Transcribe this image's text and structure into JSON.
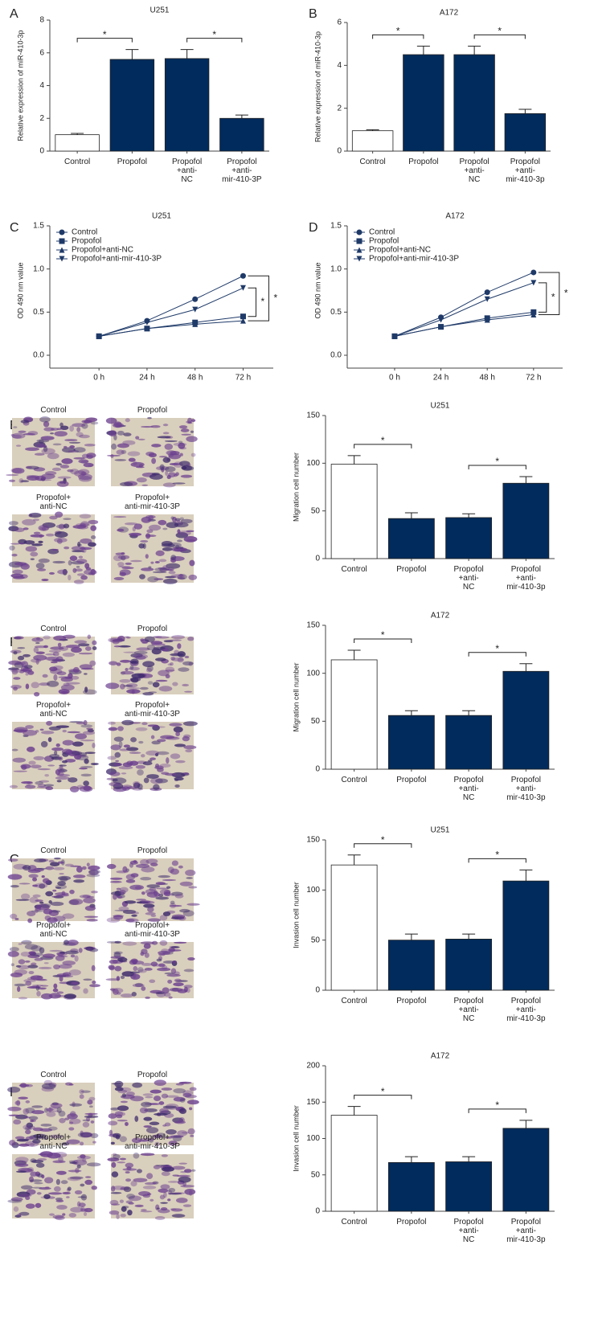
{
  "chart_data": [
    {
      "type": "bar",
      "panel": "A",
      "title": "U251",
      "ylabel": "Relative expression of miR-410-3p",
      "categories": [
        "Control",
        "Propofol",
        "Propofol\n+anti-\nNC",
        "Propofol\n+anti-\nmir-410-3P"
      ],
      "values": [
        1.0,
        5.6,
        5.65,
        2.0
      ],
      "errors": [
        0.08,
        0.6,
        0.55,
        0.2
      ],
      "ylim": [
        0,
        8
      ],
      "yticks": [
        0,
        2,
        4,
        6,
        8
      ],
      "colors": [
        "#ffffff",
        "#002b5c",
        "#002b5c",
        "#002b5c"
      ],
      "annotations": [
        "*",
        "*"
      ]
    },
    {
      "type": "bar",
      "panel": "B",
      "title": "A172",
      "ylabel": "Relative expression of miR-410-3p",
      "categories": [
        "Control",
        "Propofol",
        "Propofol\n+anti-\nNC",
        "Propofol\n+anti-\nmir-410-3p"
      ],
      "values": [
        0.95,
        4.5,
        4.5,
        1.75
      ],
      "errors": [
        0.05,
        0.4,
        0.4,
        0.2
      ],
      "ylim": [
        0,
        6
      ],
      "yticks": [
        0,
        2,
        4,
        6
      ],
      "colors": [
        "#ffffff",
        "#002b5c",
        "#002b5c",
        "#002b5c"
      ],
      "annotations": [
        "*",
        "*"
      ]
    },
    {
      "type": "line",
      "panel": "C",
      "title": "U251",
      "ylabel": "OD 490 nm value",
      "categories": [
        "0 h",
        "24 h",
        "48 h",
        "72 h"
      ],
      "series": [
        {
          "name": "Control",
          "color": "#1f3a68",
          "marker": "circle",
          "values": [
            0.22,
            0.4,
            0.65,
            0.92
          ]
        },
        {
          "name": "Propofol",
          "color": "#1f3a68",
          "marker": "square",
          "values": [
            0.22,
            0.31,
            0.38,
            0.45
          ]
        },
        {
          "name": "Propofol+anti-NC",
          "color": "#1f3a68",
          "marker": "triangle-up",
          "values": [
            0.22,
            0.31,
            0.36,
            0.4
          ]
        },
        {
          "name": "Propofol+anti-mir-410-3P",
          "color": "#1f3a68",
          "marker": "triangle-down",
          "values": [
            0.22,
            0.38,
            0.53,
            0.78
          ]
        }
      ],
      "ylim": [
        0,
        1.5
      ],
      "yticks": [
        {
          "value": 0,
          "label": "0.0"
        },
        0.5,
        {
          "value": 1,
          "label": "1.0"
        },
        1.5
      ],
      "annotations": [
        "*",
        "*"
      ]
    },
    {
      "type": "line",
      "panel": "D",
      "title": "A172",
      "ylabel": "OD 490 nm value",
      "categories": [
        "0 h",
        "24 h",
        "48 h",
        "72 h"
      ],
      "series": [
        {
          "name": "Control",
          "color": "#1f3a68",
          "marker": "circle",
          "values": [
            0.22,
            0.44,
            0.73,
            0.96
          ]
        },
        {
          "name": "Propofol",
          "color": "#1f3a68",
          "marker": "square",
          "values": [
            0.22,
            0.33,
            0.43,
            0.5
          ]
        },
        {
          "name": "Propofol+anti-NC",
          "color": "#1f3a68",
          "marker": "triangle-up",
          "values": [
            0.22,
            0.33,
            0.41,
            0.47
          ]
        },
        {
          "name": "Propofol+anti-mir-410-3P",
          "color": "#1f3a68",
          "marker": "triangle-down",
          "values": [
            0.22,
            0.41,
            0.65,
            0.84
          ]
        }
      ],
      "ylim": [
        0,
        1.5
      ],
      "yticks": [
        {
          "value": 0,
          "label": "0.0"
        },
        0.5,
        {
          "value": 1,
          "label": "1.0"
        },
        1.5
      ],
      "annotations": [
        "*",
        "*"
      ]
    },
    {
      "type": "bar",
      "panel": "E",
      "title": "U251",
      "ylabel": "Migration cell number",
      "image_labels": [
        "Control",
        "Propofol",
        "Propofol+\nanti-NC",
        "Propofol+\nanti-mir-410-3P"
      ],
      "categories": [
        "Control",
        "Propofol",
        "Propofol\n+anti-\nNC",
        "Propofol\n+anti-\nmir-410-3p"
      ],
      "values": [
        99,
        42,
        43,
        79
      ],
      "errors": [
        9,
        6,
        4,
        7
      ],
      "ylim": [
        0,
        150
      ],
      "yticks": [
        0,
        50,
        100,
        150
      ],
      "colors": [
        "#ffffff",
        "#002b5c",
        "#002b5c",
        "#002b5c"
      ],
      "annotations": [
        "*",
        "*"
      ]
    },
    {
      "type": "bar",
      "panel": "F",
      "title": "A172",
      "ylabel": "Migration cell number",
      "image_labels": [
        "Control",
        "Propofol",
        "Propofol+\nanti-NC",
        "Propofol+\nanti-mir-410-3P"
      ],
      "categories": [
        "Control",
        "Propofol",
        "Propofol\n+anti-\nNC",
        "Propofol\n+anti-\nmir-410-3p"
      ],
      "values": [
        114,
        56,
        56,
        102
      ],
      "errors": [
        10,
        5,
        5,
        8
      ],
      "ylim": [
        0,
        150
      ],
      "yticks": [
        0,
        50,
        100,
        150
      ],
      "colors": [
        "#ffffff",
        "#002b5c",
        "#002b5c",
        "#002b5c"
      ],
      "annotations": [
        "*",
        "*"
      ]
    },
    {
      "type": "bar",
      "panel": "G",
      "title": "U251",
      "ylabel": "Invasion cell number",
      "image_labels": [
        "Control",
        "Propofol",
        "Propofol+\nanti-NC",
        "Propofol+\nanti-mir-410-3P"
      ],
      "categories": [
        "Control",
        "Propofol",
        "Propofol\n+anti-\nNC",
        "Propofol\n+anti-\nmir-410-3p"
      ],
      "values": [
        125,
        50,
        51,
        109
      ],
      "errors": [
        10,
        6,
        5,
        11
      ],
      "ylim": [
        0,
        150
      ],
      "yticks": [
        0,
        50,
        100,
        150
      ],
      "colors": [
        "#ffffff",
        "#002b5c",
        "#002b5c",
        "#002b5c"
      ],
      "annotations": [
        "*",
        "*"
      ]
    },
    {
      "type": "bar",
      "panel": "H",
      "title": "A172",
      "ylabel": "Invasion cell number",
      "image_labels": [
        "Control",
        "Propofol",
        "Propofol+\nanti-NC",
        "Propofol+\nanti-mir-410-3P"
      ],
      "categories": [
        "Control",
        "Propofol",
        "Propofol\n+anti-\nNC",
        "Propofol\n+anti-\nmir-410-3p"
      ],
      "values": [
        132,
        67,
        68,
        114
      ],
      "errors": [
        12,
        8,
        7,
        11
      ],
      "ylim": [
        0,
        200
      ],
      "yticks": [
        0,
        50,
        100,
        150,
        200
      ],
      "colors": [
        "#ffffff",
        "#002b5c",
        "#002b5c",
        "#002b5c"
      ],
      "annotations": [
        "*",
        "*"
      ]
    }
  ]
}
